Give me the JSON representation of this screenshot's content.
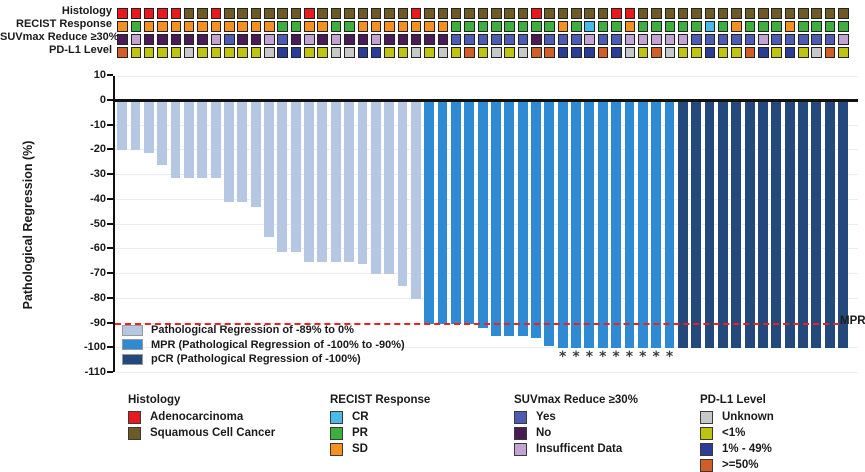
{
  "header": {
    "track_labels": [
      "Histology",
      "RECIST Response",
      "SUVmax Reduce ≥30%",
      "PD-L1 Level"
    ]
  },
  "tracks": {
    "order": [
      "histology",
      "recist",
      "suvmax",
      "pdl1"
    ],
    "histology": {
      "palette": {
        "A": "#e8191c",
        "S": "#6e5a27"
      },
      "codes": [
        "A",
        "A",
        "A",
        "A",
        "A",
        "S",
        "S",
        "A",
        "S",
        "S",
        "S",
        "S",
        "S",
        "S",
        "A",
        "S",
        "S",
        "S",
        "S",
        "S",
        "S",
        "S",
        "A",
        "S",
        "S",
        "S",
        "S",
        "S",
        "S",
        "S",
        "S",
        "A",
        "S",
        "S",
        "S",
        "S",
        "S",
        "A",
        "A",
        "S",
        "S",
        "S",
        "S",
        "S",
        "S",
        "S",
        "S",
        "S",
        "S",
        "S",
        "S",
        "S",
        "S",
        "S",
        "S"
      ]
    },
    "recist": {
      "palette": {
        "SD": "#f59120",
        "PR": "#3eae3e",
        "CR": "#49bbea"
      },
      "codes": [
        "SD",
        "PR",
        "SD",
        "SD",
        "SD",
        "SD",
        "SD",
        "SD",
        "SD",
        "SD",
        "SD",
        "SD",
        "PR",
        "PR",
        "SD",
        "SD",
        "PR",
        "PR",
        "SD",
        "SD",
        "SD",
        "SD",
        "SD",
        "SD",
        "SD",
        "PR",
        "PR",
        "PR",
        "PR",
        "PR",
        "PR",
        "PR",
        "PR",
        "SD",
        "PR",
        "CR",
        "PR",
        "PR",
        "SD",
        "PR",
        "PR",
        "PR",
        "PR",
        "PR",
        "CR",
        "PR",
        "SD",
        "PR",
        "PR",
        "PR",
        "SD",
        "PR",
        "PR",
        "PR",
        "PR"
      ]
    },
    "suvmax": {
      "palette": {
        "Y": "#4d5cb0",
        "N": "#4b1b57",
        "I": "#c2a3d3"
      },
      "codes": [
        "N",
        "I",
        "N",
        "N",
        "N",
        "N",
        "N",
        "I",
        "Y",
        "N",
        "N",
        "I",
        "Y",
        "N",
        "I",
        "N",
        "I",
        "N",
        "N",
        "I",
        "N",
        "N",
        "N",
        "N",
        "N",
        "Y",
        "Y",
        "Y",
        "Y",
        "Y",
        "Y",
        "N",
        "Y",
        "Y",
        "Y",
        "I",
        "Y",
        "Y",
        "I",
        "I",
        "I",
        "I",
        "I",
        "Y",
        "Y",
        "Y",
        "Y",
        "Y",
        "I",
        "Y",
        "Y",
        "Y",
        "Y",
        "Y",
        "I"
      ]
    },
    "pdl1": {
      "palette": {
        "U": "#c8c8c8",
        "L": "#bec40f",
        "M": "#2b3e97",
        "H": "#d15e26"
      },
      "codes": [
        "H",
        "L",
        "L",
        "L",
        "L",
        "U",
        "L",
        "L",
        "L",
        "L",
        "L",
        "U",
        "M",
        "M",
        "L",
        "L",
        "U",
        "U",
        "M",
        "M",
        "L",
        "L",
        "U",
        "L",
        "U",
        "L",
        "H",
        "L",
        "U",
        "L",
        "U",
        "H",
        "H",
        "M",
        "M",
        "M",
        "H",
        "M",
        "U",
        "L",
        "H",
        "U",
        "L",
        "L",
        "M",
        "L",
        "L",
        "H",
        "M",
        "L",
        "M",
        "L",
        "U",
        "H",
        "L"
      ]
    }
  },
  "chart_data": {
    "type": "bar",
    "title": "",
    "ylabel": "Pathological Regression (%)",
    "ylim": [
      -110,
      10
    ],
    "ytick_step": 10,
    "ytick_labels": [
      "10",
      "0",
      "-10",
      "-20",
      "-30",
      "-40",
      "-50",
      "-60",
      "-70",
      "-80",
      "-90",
      "-100",
      "-110"
    ],
    "n_patients": 55,
    "values": [
      -20,
      -20,
      -21,
      -26,
      -31,
      -31,
      -31,
      -31,
      -41,
      -41,
      -43,
      -55,
      -61,
      -61,
      -65,
      -65,
      -65,
      -65,
      -66,
      -70,
      -70,
      -75,
      -80,
      -90,
      -90,
      -90,
      -90,
      -92,
      -95,
      -95,
      -95,
      -96,
      -99,
      -100,
      -100,
      -100,
      -100,
      -100,
      -100,
      -100,
      -100,
      -100,
      -100,
      -100,
      -100,
      -100,
      -100,
      -100,
      -100,
      -100,
      -100,
      -100,
      -100,
      -100,
      -100
    ],
    "bar_classes": [
      "regression",
      "regression",
      "regression",
      "regression",
      "regression",
      "regression",
      "regression",
      "regression",
      "regression",
      "regression",
      "regression",
      "regression",
      "regression",
      "regression",
      "regression",
      "regression",
      "regression",
      "regression",
      "regression",
      "regression",
      "regression",
      "regression",
      "regression",
      "mpr",
      "mpr",
      "mpr",
      "mpr",
      "mpr",
      "mpr",
      "mpr",
      "mpr",
      "mpr",
      "mpr",
      "mpr",
      "mpr",
      "mpr",
      "mpr",
      "mpr",
      "mpr",
      "mpr",
      "mpr",
      "mpr",
      "pcr",
      "pcr",
      "pcr",
      "pcr",
      "pcr",
      "pcr",
      "pcr",
      "pcr",
      "pcr",
      "pcr",
      "pcr",
      "pcr",
      "pcr"
    ],
    "bar_colors": {
      "regression": "#b5c7e3",
      "mpr": "#2e8ad2",
      "pcr": "#23497c"
    },
    "grid": true,
    "reference_line": {
      "value": -90,
      "label": "MPR",
      "color": "#e82323",
      "style": "dashed"
    },
    "asterisk_bar_indices": [
      34,
      35,
      36,
      37,
      38,
      39,
      40,
      41,
      42
    ],
    "asterisk_symbol": "*",
    "plot_legend": [
      {
        "key": "regression",
        "label": "Pathological Regression of -89% to 0%"
      },
      {
        "key": "mpr",
        "label": "MPR (Pathological Regression of -100% to -90%)"
      },
      {
        "key": "pcr",
        "label": "pCR (Pathological Regression of -100%)"
      }
    ],
    "legend_position": "lower-left"
  },
  "bottom_legends": [
    {
      "title": "Histology",
      "items": [
        {
          "label": "Adenocarcinoma",
          "color": "#e8191c"
        },
        {
          "label": "Squamous Cell Cancer",
          "color": "#6e5a27"
        }
      ]
    },
    {
      "title": "RECIST Response",
      "items": [
        {
          "label": "CR",
          "color": "#49bbea"
        },
        {
          "label": "PR",
          "color": "#3eae3e"
        },
        {
          "label": "SD",
          "color": "#f59120"
        }
      ]
    },
    {
      "title": "SUVmax Reduce ≥30%",
      "items": [
        {
          "label": "Yes",
          "color": "#4d5cb0"
        },
        {
          "label": "No",
          "color": "#4b1b57"
        },
        {
          "label": "Insufficent Data",
          "color": "#c2a3d3"
        }
      ]
    },
    {
      "title": "PD-L1 Level",
      "items": [
        {
          "label": "Unknown",
          "color": "#c8c8c8"
        },
        {
          "label": "<1%",
          "color": "#bec40f"
        },
        {
          "label": "1% - 49%",
          "color": "#2b3e97"
        },
        {
          "label": ">=50%",
          "color": "#d15e26"
        }
      ]
    }
  ]
}
